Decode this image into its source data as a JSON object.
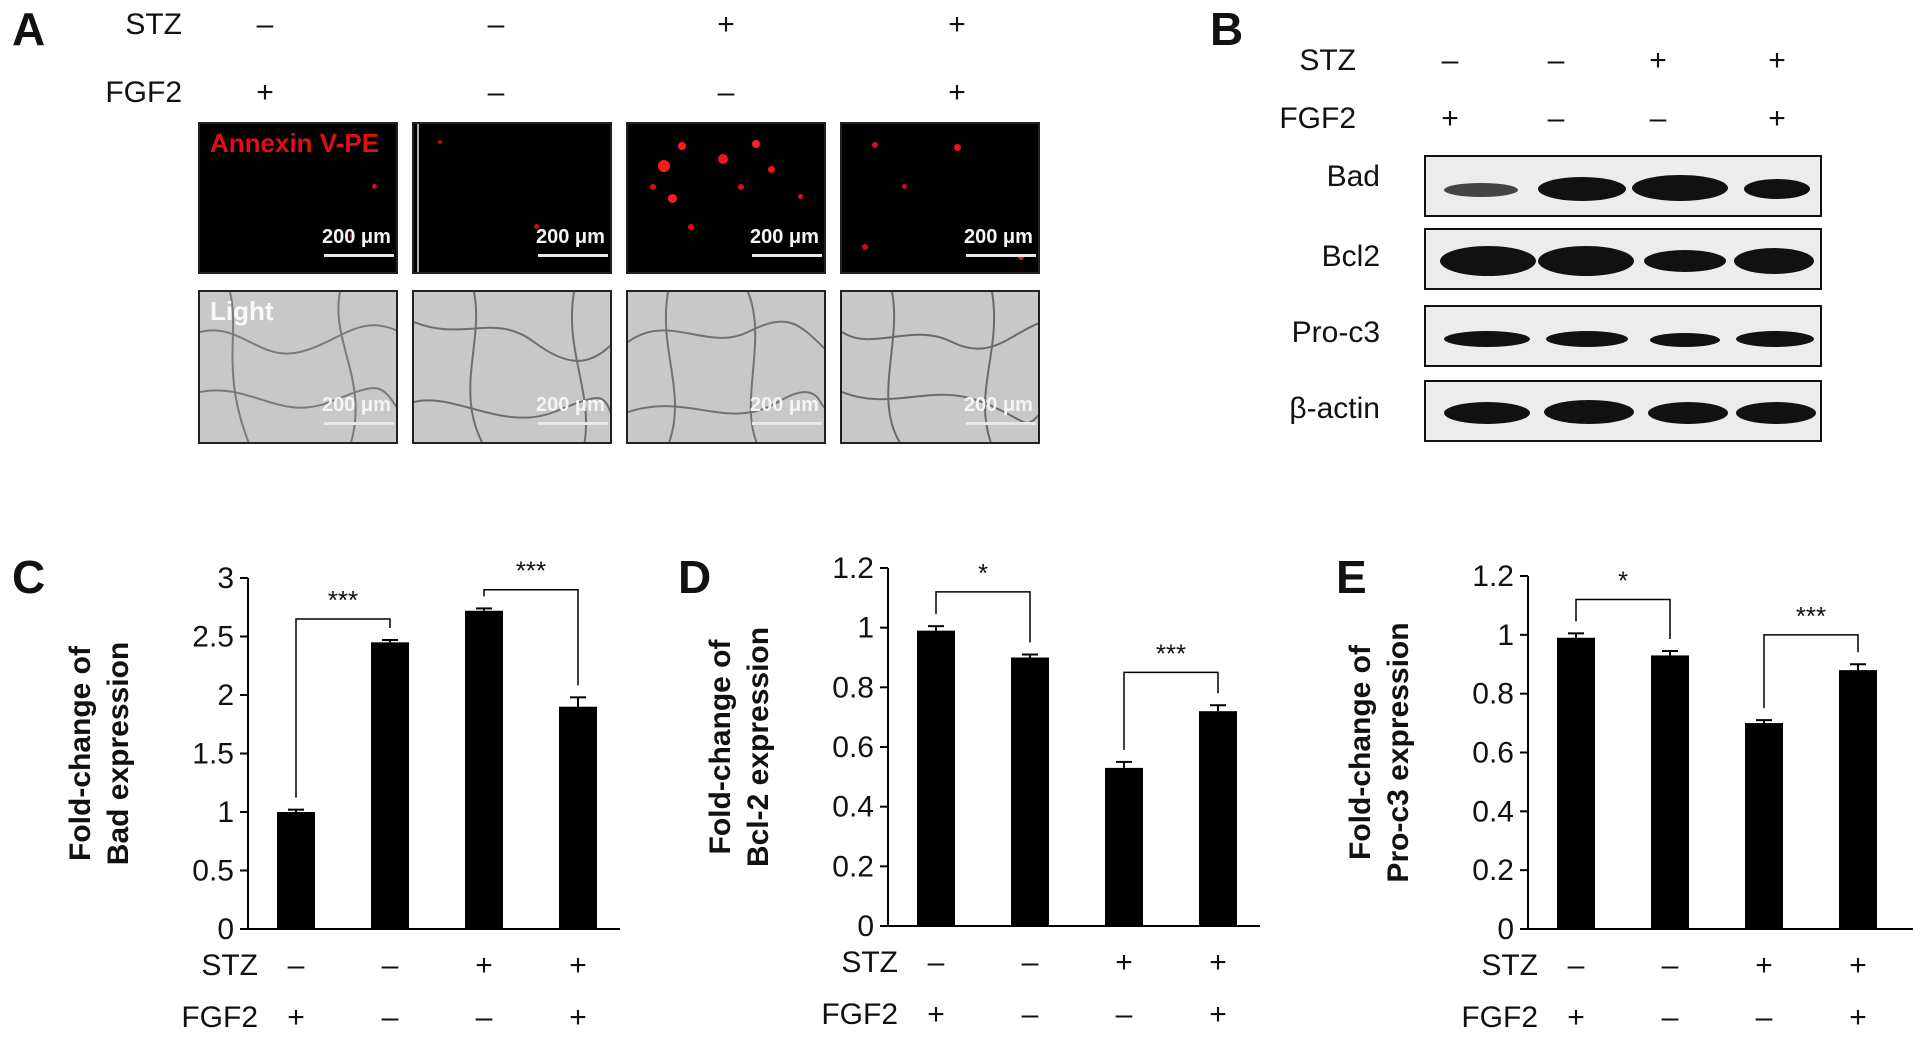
{
  "panel_letters": [
    "A",
    "B",
    "C",
    "D",
    "E"
  ],
  "treatment_rows": {
    "stz_label": "STZ",
    "fgf2_label": "FGF2",
    "stz_signs": [
      "–",
      "–",
      "+",
      "+"
    ],
    "fgf2_signs": [
      "+",
      "–",
      "–",
      "+"
    ]
  },
  "panel_a": {
    "fluor_label": "Annexin V-PE",
    "light_label": "Light",
    "scale_label": "200 μm"
  },
  "panel_b": {
    "bands": [
      "Bad",
      "Bcl2",
      "Pro-c3",
      "β-actin"
    ]
  },
  "colors": {
    "fluor_bg": "#000000",
    "fluor_dot": "#e01010",
    "bar": "#000000",
    "light_bg": "#c8c8c8"
  },
  "chart_data": [
    {
      "type": "bar",
      "panel": "C",
      "ylabel_lines": [
        "Fold-change of",
        "Bad expression"
      ],
      "ylim": [
        0,
        3
      ],
      "yticks": [
        0,
        0.5,
        1,
        1.5,
        2,
        2.5,
        3
      ],
      "ytick_labels": [
        "0",
        "0.5",
        "1",
        "1.5",
        "2",
        "2.5",
        "3"
      ],
      "values": [
        1.0,
        2.45,
        2.72,
        1.9
      ],
      "errors": [
        0.02,
        0.02,
        0.02,
        0.08
      ],
      "significance": [
        {
          "from": 0,
          "to": 1,
          "label": "***",
          "y": 2.65
        },
        {
          "from": 2,
          "to": 3,
          "label": "***",
          "y": 2.9
        }
      ]
    },
    {
      "type": "bar",
      "panel": "D",
      "ylabel_lines": [
        "Fold-change of",
        "Bcl-2 expression"
      ],
      "ylim": [
        0,
        1.2
      ],
      "yticks": [
        0,
        0.2,
        0.4,
        0.6,
        0.8,
        1,
        1.2
      ],
      "ytick_labels": [
        "0",
        "0.2",
        "0.4",
        "0.6",
        "0.8",
        "1",
        "1.2"
      ],
      "values": [
        0.99,
        0.9,
        0.53,
        0.72
      ],
      "errors": [
        0.015,
        0.01,
        0.02,
        0.02
      ],
      "significance": [
        {
          "from": 0,
          "to": 1,
          "label": "*",
          "y": 1.12
        },
        {
          "from": 2,
          "to": 3,
          "label": "***",
          "y": 0.85
        }
      ]
    },
    {
      "type": "bar",
      "panel": "E",
      "ylabel_lines": [
        "Fold-change of",
        "Pro-c3 expression"
      ],
      "ylim": [
        0,
        1.2
      ],
      "yticks": [
        0,
        0.2,
        0.4,
        0.6,
        0.8,
        1,
        1.2
      ],
      "ytick_labels": [
        "0",
        "0.2",
        "0.4",
        "0.6",
        "0.8",
        "1",
        "1.2"
      ],
      "values": [
        0.99,
        0.93,
        0.7,
        0.88
      ],
      "errors": [
        0.015,
        0.015,
        0.01,
        0.02
      ],
      "significance": [
        {
          "from": 0,
          "to": 1,
          "label": "*",
          "y": 1.12
        },
        {
          "from": 2,
          "to": 3,
          "label": "***",
          "y": 1.0
        }
      ]
    }
  ]
}
